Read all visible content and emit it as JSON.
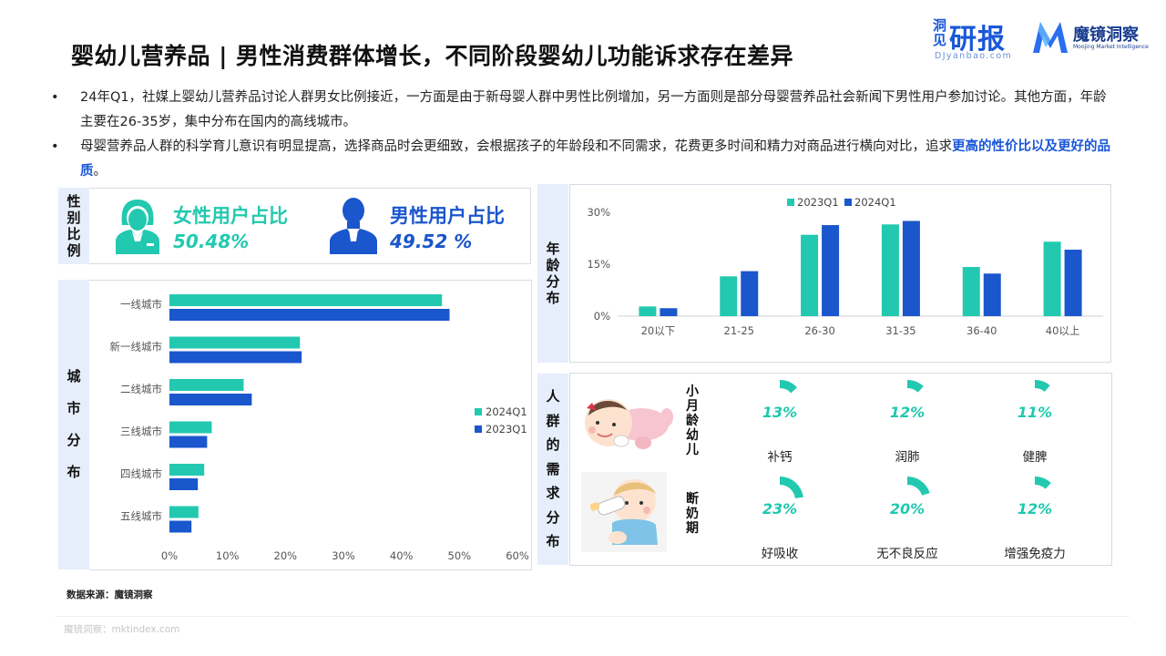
{
  "header": {
    "title": "婴幼儿营养品 | 男性消费群体增长，不同阶段婴幼儿功能诉求存在差异",
    "logo_ybk_prefix": "洞见",
    "logo_ybk_main": "研报",
    "logo_ybk_sub": "DJyanbao.com",
    "logo_mj_name": "魔镜洞察",
    "logo_mj_tag": "Moojing Market Intelligence"
  },
  "bullets": [
    {
      "dot": "•",
      "text": "24年Q1，社媒上婴幼儿营养品讨论人群男女比例接近，一方面是由于新母婴人群中男性比例增加，另一方面则是部分母婴营养品社会新闻下男性用户参加讨论。其他方面，年龄主要在26-35岁，集中分布在国内的高线城市。"
    },
    {
      "dot": "•",
      "text_before": "母婴营养品人群的科学育儿意识有明显提高，选择商品时会更细致，会根据孩子的年龄段和不同需求，花费更多时间和精力对商品进行横向对比，追求",
      "highlight": "更高的性价比以及更好的品质",
      "text_after": "。"
    }
  ],
  "gender": {
    "section_label": "性别比例",
    "female_label": "女性用户占比",
    "female_value": "50.48%",
    "male_label": "男性用户占比",
    "male_value": "49.52 %"
  },
  "city_section_label": "城市分布",
  "age_section_label": "年龄分布",
  "needs": {
    "section_label": "人群的需求分布",
    "rows": [
      {
        "label": "小月龄幼儿",
        "items": [
          {
            "pct": "13%",
            "value": 0.13,
            "name": "补钙"
          },
          {
            "pct": "12%",
            "value": 0.12,
            "name": "润肺"
          },
          {
            "pct": "11%",
            "value": 0.11,
            "name": "健脾"
          }
        ]
      },
      {
        "label": "断奶期",
        "items": [
          {
            "pct": "23%",
            "value": 0.23,
            "name": "好吸收"
          },
          {
            "pct": "20%",
            "value": 0.2,
            "name": "无不良反应"
          },
          {
            "pct": "12%",
            "value": 0.12,
            "name": "增强免疫力"
          }
        ]
      }
    ]
  },
  "colors": {
    "teal": "#22c9b0",
    "blue": "#1a56cc",
    "label_bg": "#e6eefb"
  },
  "icons": {
    "female": "female-user-icon",
    "male": "male-user-icon",
    "baby1": "crawling-baby-illustration",
    "baby2": "bottle-baby-illustration"
  },
  "chart_data": [
    {
      "type": "bar",
      "orientation": "horizontal",
      "categories": [
        "一线城市",
        "新一线城市",
        "二线城市",
        "三线城市",
        "四线城市",
        "五线城市"
      ],
      "series": [
        {
          "name": "2024Q1",
          "color": "#22c9b0",
          "values": [
            47,
            22.5,
            12.8,
            7.3,
            6.0,
            5.0
          ]
        },
        {
          "name": "2023Q1",
          "color": "#1a56cc",
          "values": [
            48.3,
            22.8,
            14.2,
            6.5,
            4.9,
            3.8
          ]
        }
      ],
      "xticks": [
        "0%",
        "10%",
        "20%",
        "30%",
        "40%",
        "50%",
        "60%"
      ],
      "xlim": [
        0,
        60
      ],
      "legend": "right"
    },
    {
      "type": "bar",
      "categories": [
        "20以下",
        "21-25",
        "26-30",
        "31-35",
        "36-40",
        "40以上"
      ],
      "series": [
        {
          "name": "2023Q1",
          "color": "#22c9b0",
          "values": [
            2.8,
            11.5,
            23.5,
            26.5,
            14.2,
            21.5
          ]
        },
        {
          "name": "2024Q1",
          "color": "#1a56cc",
          "values": [
            2.3,
            13.0,
            26.3,
            27.5,
            12.3,
            19.2
          ]
        }
      ],
      "yticks": [
        "0%",
        "15%",
        "30%"
      ],
      "ylim": [
        0,
        30
      ],
      "legend": "top"
    }
  ]
}
